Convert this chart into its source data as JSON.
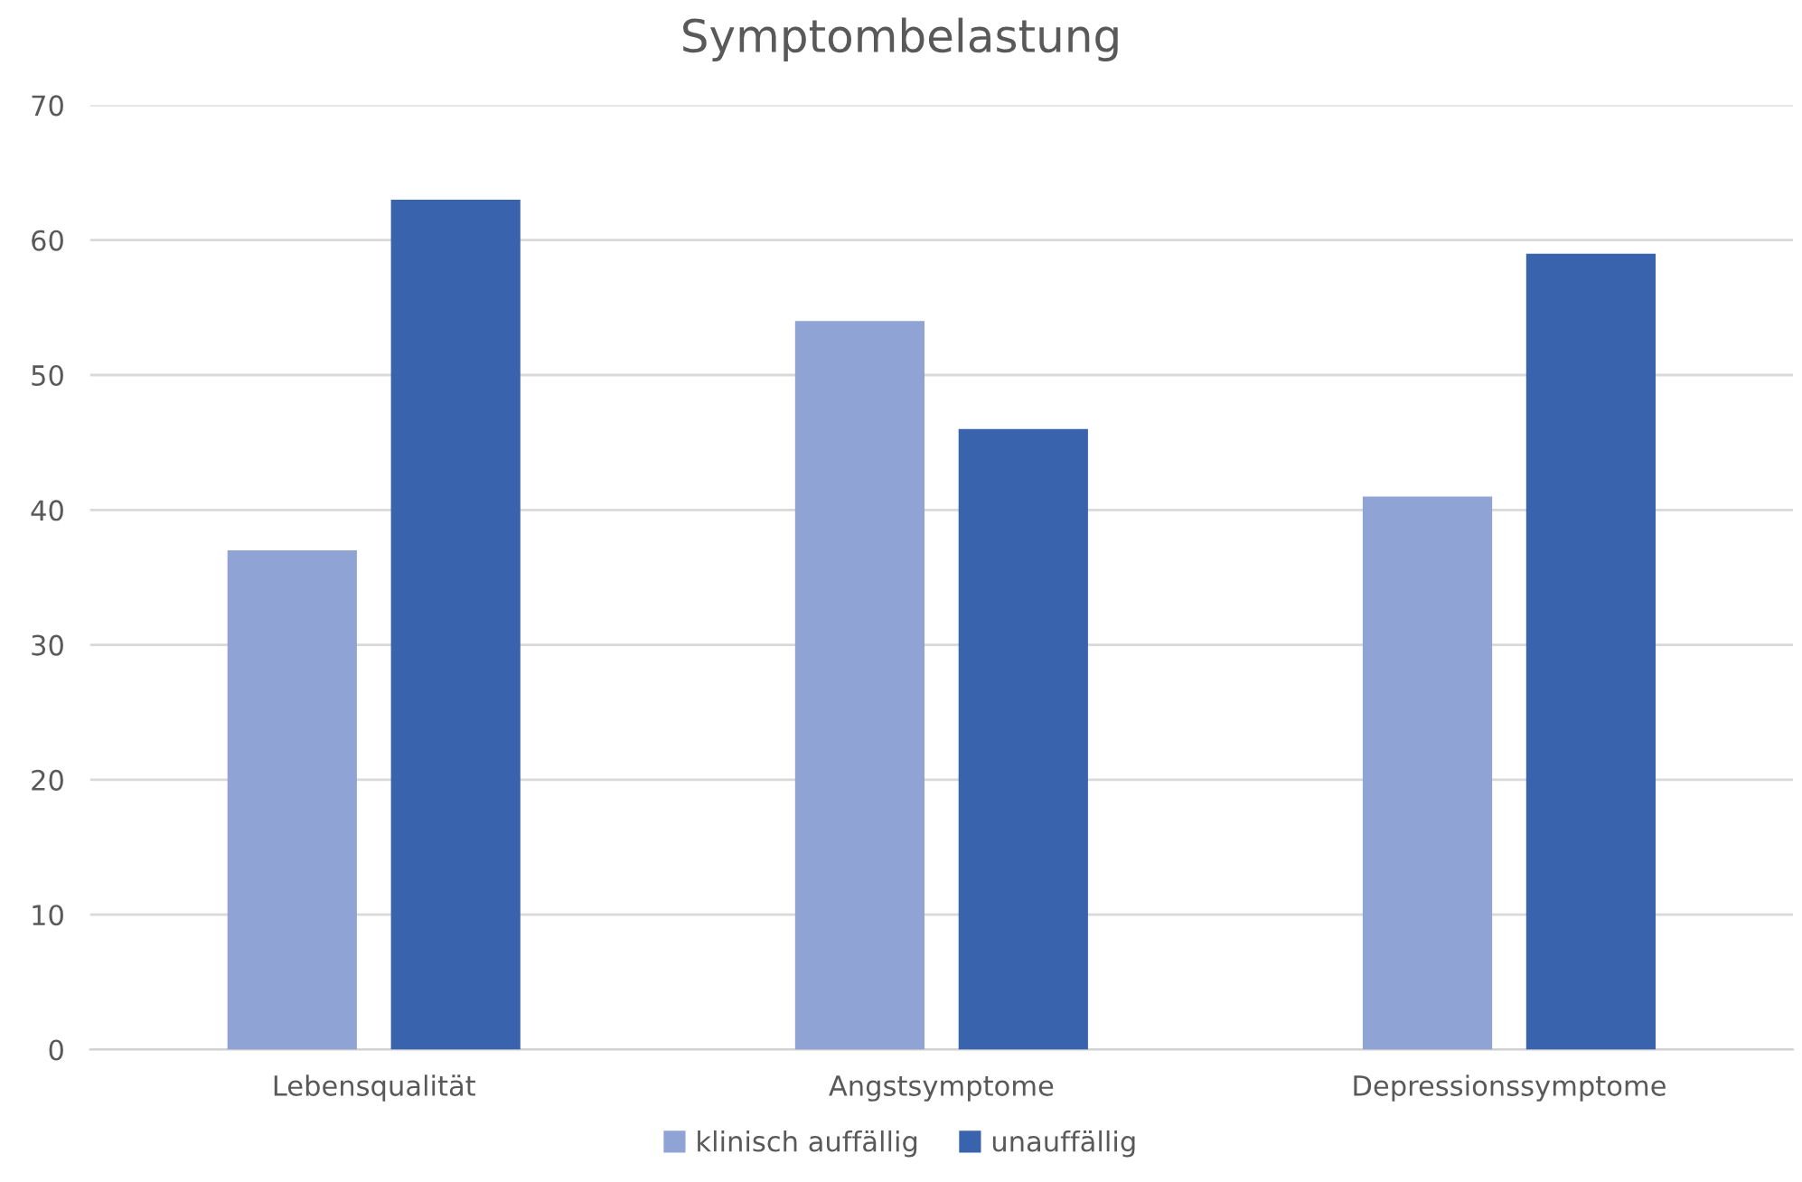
{
  "chart_data": {
    "type": "bar",
    "title": "Symptombelastung",
    "categories": [
      "Lebensqualität",
      "Angstsymptome",
      "Depressionssymptome"
    ],
    "series": [
      {
        "name": "klinisch auffällig",
        "color": "#8fa3d5",
        "values": [
          37,
          54,
          41
        ]
      },
      {
        "name": "unauffällig",
        "color": "#3a63ad",
        "values": [
          63,
          46,
          59
        ]
      }
    ],
    "ylim": [
      0,
      70
    ],
    "yticks": [
      0,
      10,
      20,
      30,
      40,
      50,
      60,
      70
    ],
    "grid": "y",
    "legend": "bottom"
  }
}
